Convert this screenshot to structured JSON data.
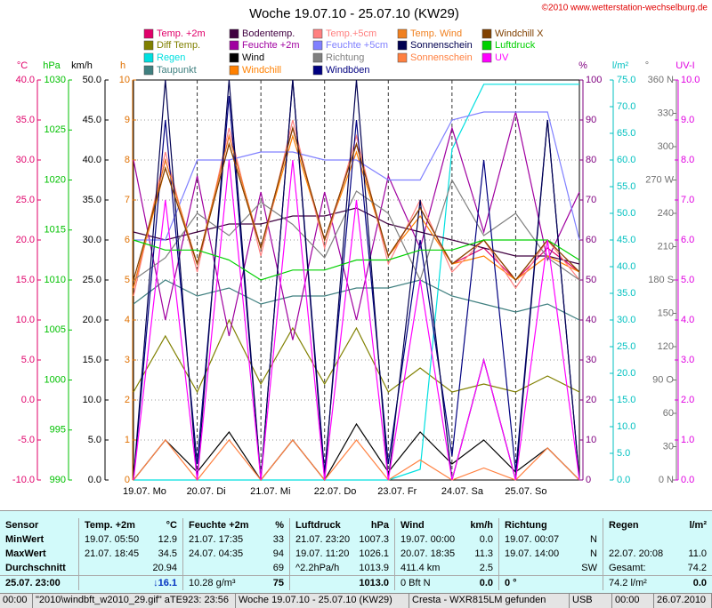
{
  "header": {
    "title": "Woche 19.07.10 - 25.07.10 (KW29)",
    "copyright": "©2010 www.wetterstation-wechselburg.de"
  },
  "chart_data": {
    "type": "line",
    "xlim": [
      0,
      7
    ],
    "xticks": [
      {
        "value": 0,
        "label": "19.07. Mo"
      },
      {
        "value": 1,
        "label": "20.07. Di"
      },
      {
        "value": 2,
        "label": "21.07. Mi"
      },
      {
        "value": 3,
        "label": "22.07. Do"
      },
      {
        "value": 4,
        "label": "23.07. Fr"
      },
      {
        "value": 5,
        "label": "24.07. Sa"
      },
      {
        "value": 6,
        "label": "25.07. So"
      }
    ],
    "x": [
      0,
      0.5,
      1,
      1.5,
      2,
      2.5,
      3,
      3.5,
      4,
      4.5,
      5,
      5.5,
      6,
      6.5,
      7
    ],
    "grid": true,
    "axes": [
      {
        "label": "°C",
        "side": "left",
        "color": "#e0006a",
        "lim": [
          -10,
          40
        ],
        "ticks": [
          {
            "value": -10,
            "label": "-10.0"
          },
          {
            "value": -5,
            "label": "-5.0"
          },
          {
            "value": 0,
            "label": "0.0"
          },
          {
            "value": 5,
            "label": "5.0"
          },
          {
            "value": 10,
            "label": "10.0"
          },
          {
            "value": 15,
            "label": "15.0"
          },
          {
            "value": 20,
            "label": "20.0"
          },
          {
            "value": 25,
            "label": "25.0"
          },
          {
            "value": 30,
            "label": "30.0"
          },
          {
            "value": 35,
            "label": "35.0"
          },
          {
            "value": 40,
            "label": "40.0"
          }
        ]
      },
      {
        "label": "hPa",
        "side": "left",
        "color": "#00c000",
        "lim": [
          990,
          1030
        ],
        "ticks": [
          990,
          995,
          1000,
          1005,
          1010,
          1015,
          1020,
          1025,
          1030
        ]
      },
      {
        "label": "km/h",
        "side": "left",
        "color": "#000000",
        "lim": [
          0,
          50
        ],
        "ticks": [
          {
            "value": 0,
            "label": "0.0"
          },
          {
            "value": 5,
            "label": "5.0"
          },
          {
            "value": 10,
            "label": "10.0"
          },
          {
            "value": 15,
            "label": "15.0"
          },
          {
            "value": 20,
            "label": "20.0"
          },
          {
            "value": 25,
            "label": "25.0"
          },
          {
            "value": 30,
            "label": "30.0"
          },
          {
            "value": 35,
            "label": "35.0"
          },
          {
            "value": 40,
            "label": "40.0"
          },
          {
            "value": 45,
            "label": "45.0"
          },
          {
            "value": 50,
            "label": "50.0"
          }
        ]
      },
      {
        "label": "h",
        "side": "left",
        "color": "#e07000",
        "lim": [
          0,
          10
        ],
        "ticks": [
          0,
          1,
          2,
          3,
          4,
          5,
          6,
          7,
          8,
          9,
          10
        ]
      },
      {
        "label": "%",
        "side": "right",
        "color": "#800080",
        "lim": [
          0,
          100
        ],
        "ticks": [
          0,
          10,
          20,
          30,
          40,
          50,
          60,
          70,
          80,
          90,
          100
        ]
      },
      {
        "label": "l/m²",
        "side": "right",
        "color": "#00c0c0",
        "lim": [
          0,
          75
        ],
        "ticks": [
          {
            "value": 0,
            "label": "0.0"
          },
          {
            "value": 5,
            "label": "5.0"
          },
          {
            "value": 10,
            "label": "10.0"
          },
          {
            "value": 15,
            "label": "15.0"
          },
          {
            "value": 20,
            "label": "20.0"
          },
          {
            "value": 25,
            "label": "25.0"
          },
          {
            "value": 30,
            "label": "30.0"
          },
          {
            "value": 35,
            "label": "35.0"
          },
          {
            "value": 40,
            "label": "40.0"
          },
          {
            "value": 45,
            "label": "45.0"
          },
          {
            "value": 50,
            "label": "50.0"
          },
          {
            "value": 55,
            "label": "55.0"
          },
          {
            "value": 60,
            "label": "60.0"
          },
          {
            "value": 65,
            "label": "65.0"
          },
          {
            "value": 70,
            "label": "70.0"
          },
          {
            "value": 75,
            "label": "75.0"
          }
        ]
      },
      {
        "label": "°",
        "side": "right",
        "color": "#707070",
        "lim": [
          0,
          360
        ],
        "ticks": [
          {
            "value": 0,
            "label": "0 N"
          },
          30,
          60,
          {
            "value": 90,
            "label": "90 O"
          },
          120,
          150,
          {
            "value": 180,
            "label": "180 S"
          },
          210,
          240,
          {
            "value": 270,
            "label": "270 W"
          },
          300,
          330,
          {
            "value": 360,
            "label": "360 N"
          }
        ]
      },
      {
        "label": "UV-I",
        "side": "right",
        "color": "#e000e0",
        "lim": [
          0,
          10
        ],
        "ticks": [
          {
            "value": 0,
            "label": "0.0"
          },
          {
            "value": 1,
            "label": "1.0"
          },
          {
            "value": 2,
            "label": "2.0"
          },
          {
            "value": 3,
            "label": "3.0"
          },
          {
            "value": 4,
            "label": "4.0"
          },
          {
            "value": 5,
            "label": "5.0"
          },
          {
            "value": 6,
            "label": "6.0"
          },
          {
            "value": 7,
            "label": "7.0"
          },
          {
            "value": 8,
            "label": "8.0"
          },
          {
            "value": 9,
            "label": "9.0"
          },
          {
            "value": 10,
            "label": "10.0"
          }
        ]
      }
    ],
    "series": [
      {
        "name": "Temp. +2m",
        "color": "#e0006a",
        "axis": "°C",
        "values": [
          14,
          30,
          17,
          33,
          19,
          34,
          20,
          32,
          18,
          24,
          17,
          19,
          15,
          19,
          16
        ]
      },
      {
        "name": "Diff Temp.",
        "color": "#808000",
        "axis": "°C",
        "values": [
          1,
          8,
          1,
          10,
          2,
          9,
          2,
          9,
          1,
          4,
          1,
          2,
          1,
          3,
          1
        ]
      },
      {
        "name": "Regen",
        "color": "#00e0e0",
        "axis": "l/m²",
        "values": [
          0,
          0,
          0,
          0,
          0,
          0,
          0,
          0,
          0,
          2,
          62,
          74.2,
          74.2,
          74.2,
          74.2
        ]
      },
      {
        "name": "Taupunkt",
        "color": "#408080",
        "axis": "°C",
        "values": [
          12,
          15,
          13,
          14,
          12,
          13,
          13,
          14,
          14,
          15,
          13,
          12,
          11,
          12,
          10
        ]
      },
      {
        "name": "Bodentemp.",
        "color": "#400040",
        "axis": "°C",
        "values": [
          21,
          20,
          21,
          22,
          22,
          23,
          23,
          24,
          22,
          21,
          20,
          19,
          18,
          18,
          17
        ]
      },
      {
        "name": "Feuchte +2m",
        "color": "#a000a0",
        "axis": "%",
        "values": [
          80,
          40,
          76,
          36,
          72,
          35,
          72,
          40,
          76,
          58,
          88,
          62,
          92,
          55,
          72
        ]
      },
      {
        "name": "Wind",
        "color": "#000000",
        "axis": "km/h",
        "values": [
          0,
          5,
          1,
          6,
          0,
          5,
          0,
          7,
          1,
          6,
          2,
          5,
          1,
          4,
          0
        ]
      },
      {
        "name": "Windchill",
        "color": "#ff8000",
        "axis": "°C",
        "values": [
          14,
          29,
          17,
          32,
          19,
          33,
          20,
          31,
          18,
          23,
          17,
          18,
          15,
          18,
          16
        ]
      },
      {
        "name": "Temp.+5cm",
        "color": "#ff8080",
        "axis": "°C",
        "values": [
          13,
          31,
          16,
          34,
          18,
          35,
          19,
          33,
          17,
          25,
          16,
          20,
          14,
          20,
          15
        ]
      },
      {
        "name": "Feuchte +5cm",
        "color": "#8080ff",
        "axis": "%",
        "values": [
          60,
          60,
          80,
          80,
          82,
          82,
          80,
          80,
          75,
          75,
          90,
          92,
          92,
          92,
          60
        ]
      },
      {
        "name": "Richtung",
        "color": "#808080",
        "axis": "°",
        "values": [
          180,
          200,
          240,
          220,
          250,
          230,
          200,
          260,
          240,
          180,
          270,
          220,
          240,
          200,
          180
        ]
      },
      {
        "name": "Windböen",
        "color": "#000080",
        "axis": "km/h",
        "values": [
          0,
          45,
          2,
          48,
          0,
          50,
          1,
          45,
          2,
          30,
          3,
          40,
          1,
          45,
          0
        ]
      },
      {
        "name": "Temp. Wind",
        "color": "#f08020",
        "axis": "°C",
        "values": [
          14,
          30,
          17,
          33,
          19,
          34,
          20,
          32,
          18,
          24,
          17,
          20,
          15,
          20,
          16
        ]
      },
      {
        "name": "Sonnenschein",
        "color": "#000050",
        "axis": "h",
        "values": [
          0,
          10,
          0,
          10,
          0,
          10,
          0,
          10,
          0,
          7,
          0,
          3,
          0,
          9,
          0
        ]
      },
      {
        "name": "Sonnenschein",
        "color": "#ff8040",
        "axis": "h",
        "values": [
          0,
          1,
          0,
          1,
          0,
          1,
          0,
          1,
          0,
          0.5,
          0,
          0.3,
          0,
          0.8,
          0
        ]
      },
      {
        "name": "Windchill X",
        "color": "#804000",
        "axis": "°C",
        "values": [
          15,
          29,
          17,
          32,
          19,
          34,
          20,
          32,
          18,
          24,
          17,
          20,
          15,
          20,
          16
        ]
      },
      {
        "name": "Luftdruck",
        "color": "#00d000",
        "axis": "hPa",
        "values": [
          1014,
          1013,
          1013,
          1012,
          1010,
          1011,
          1011,
          1012,
          1012,
          1013,
          1013,
          1014,
          1014,
          1014,
          1012
        ]
      },
      {
        "name": "UV",
        "color": "#ff00ff",
        "axis": "UV-I",
        "values": [
          0,
          7,
          0,
          8,
          0,
          8,
          0,
          7,
          0,
          5,
          0,
          3,
          0,
          6,
          0
        ]
      }
    ]
  },
  "table": {
    "header": {
      "label": "Sensor",
      "temp": [
        "Temp. +2m",
        "°C"
      ],
      "feuchte": [
        "Feuchte +2m",
        "%"
      ],
      "druck": [
        "Luftdruck",
        "hPa"
      ],
      "wind": [
        "Wind",
        "km/h"
      ],
      "richtung": [
        "Richtung"
      ],
      "regen": [
        "Regen",
        "l/m²"
      ]
    },
    "rows": [
      {
        "label": "MinWert",
        "temp": [
          "19.07. 05:50",
          "12.9"
        ],
        "feuchte": [
          "21.07. 17:35",
          "33"
        ],
        "druck": [
          "21.07. 23:20",
          "1007.3"
        ],
        "wind": [
          "19.07. 00:00",
          "0.0"
        ],
        "richtung": [
          "19.07. 00:07",
          "N"
        ]
      },
      {
        "label": "MaxWert",
        "temp": [
          "21.07. 18:45",
          "34.5"
        ],
        "feuchte": [
          "24.07. 04:35",
          "94"
        ],
        "druck": [
          "19.07. 11:20",
          "1026.1"
        ],
        "wind": [
          "20.07. 18:35",
          "11.3"
        ],
        "richtung": [
          "19.07. 14:00",
          "N"
        ],
        "regen": [
          "22.07. 20:08",
          "11.0"
        ]
      },
      {
        "label": "Durchschnitt",
        "temp": [
          "20.94"
        ],
        "feuchte": [
          "69"
        ],
        "druck": [
          "^2.2hPa/h",
          "1013.9"
        ],
        "wind": [
          "411.4 km",
          "2.5"
        ],
        "richtung": [
          "SW"
        ],
        "regen": [
          "Gesamt:",
          "74.2"
        ]
      },
      {
        "label": "25.07. 23:00",
        "temp": [
          "↓16.1"
        ],
        "feuchte": [
          "10.28 g/m³",
          "75"
        ],
        "druck": [
          "1013.0"
        ],
        "wind": [
          "0 Bft N",
          "0.0"
        ],
        "richtung": [
          "0 °"
        ],
        "regen": [
          "74.2 l/m²",
          "0.0"
        ]
      }
    ]
  },
  "status_bar": [
    "00:00",
    "\"2010\\windbft_w2010_29.gif\"  aTE923: 23:56",
    "Woche 19.07.10 - 25.07.10 (KW29)",
    "Cresta - WXR815LM gefunden",
    "USB",
    "00:00",
    "26.07.2010"
  ]
}
